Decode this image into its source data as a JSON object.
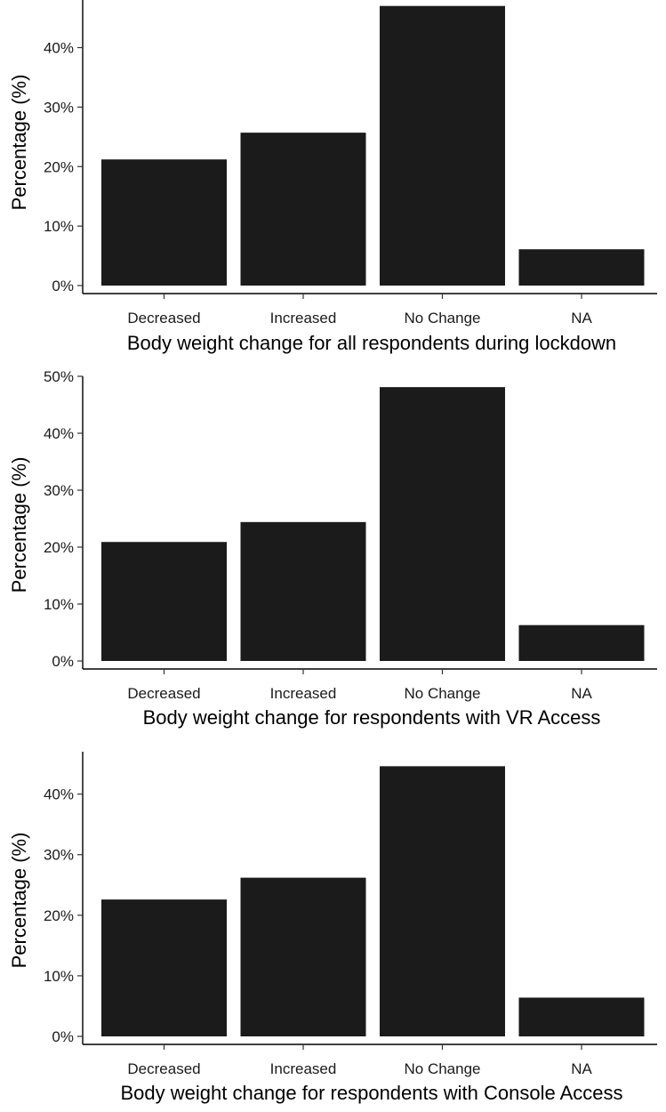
{
  "chart_data": [
    {
      "type": "bar",
      "categories": [
        "Decreased",
        "Increased",
        "No Change",
        "NA"
      ],
      "values": [
        21.2,
        25.7,
        47.0,
        6.1
      ],
      "xlabel": "Body weight change for all respondents during lockdown",
      "ylabel": "Percentage (%)",
      "ylim": [
        0,
        48
      ],
      "yticks": [
        0,
        10,
        20,
        30,
        40
      ],
      "ytick_labels": [
        "0%",
        "10%",
        "20%",
        "30%",
        "40%"
      ],
      "bar_color": "#1b1b1b",
      "grid": false,
      "legend": "none"
    },
    {
      "type": "bar",
      "categories": [
        "Decreased",
        "Increased",
        "No Change",
        "NA"
      ],
      "values": [
        20.9,
        24.4,
        48.1,
        6.3
      ],
      "xlabel": "Body weight change for respondents with VR Access",
      "ylabel": "Percentage (%)",
      "ylim": [
        0,
        50
      ],
      "yticks": [
        0,
        10,
        20,
        30,
        40,
        50
      ],
      "ytick_labels": [
        "0%",
        "10%",
        "20%",
        "30%",
        "40%",
        "50%"
      ],
      "bar_color": "#1b1b1b",
      "grid": false,
      "legend": "none"
    },
    {
      "type": "bar",
      "categories": [
        "Decreased",
        "Increased",
        "No Change",
        "NA"
      ],
      "values": [
        22.6,
        26.2,
        44.6,
        6.4
      ],
      "xlabel": "Body weight change for respondents with Console Access",
      "ylabel": "Percentage (%)",
      "ylim": [
        0,
        47
      ],
      "yticks": [
        0,
        10,
        20,
        30,
        40
      ],
      "ytick_labels": [
        "0%",
        "10%",
        "20%",
        "30%",
        "40%"
      ],
      "bar_color": "#1b1b1b",
      "grid": false,
      "legend": "none"
    }
  ]
}
